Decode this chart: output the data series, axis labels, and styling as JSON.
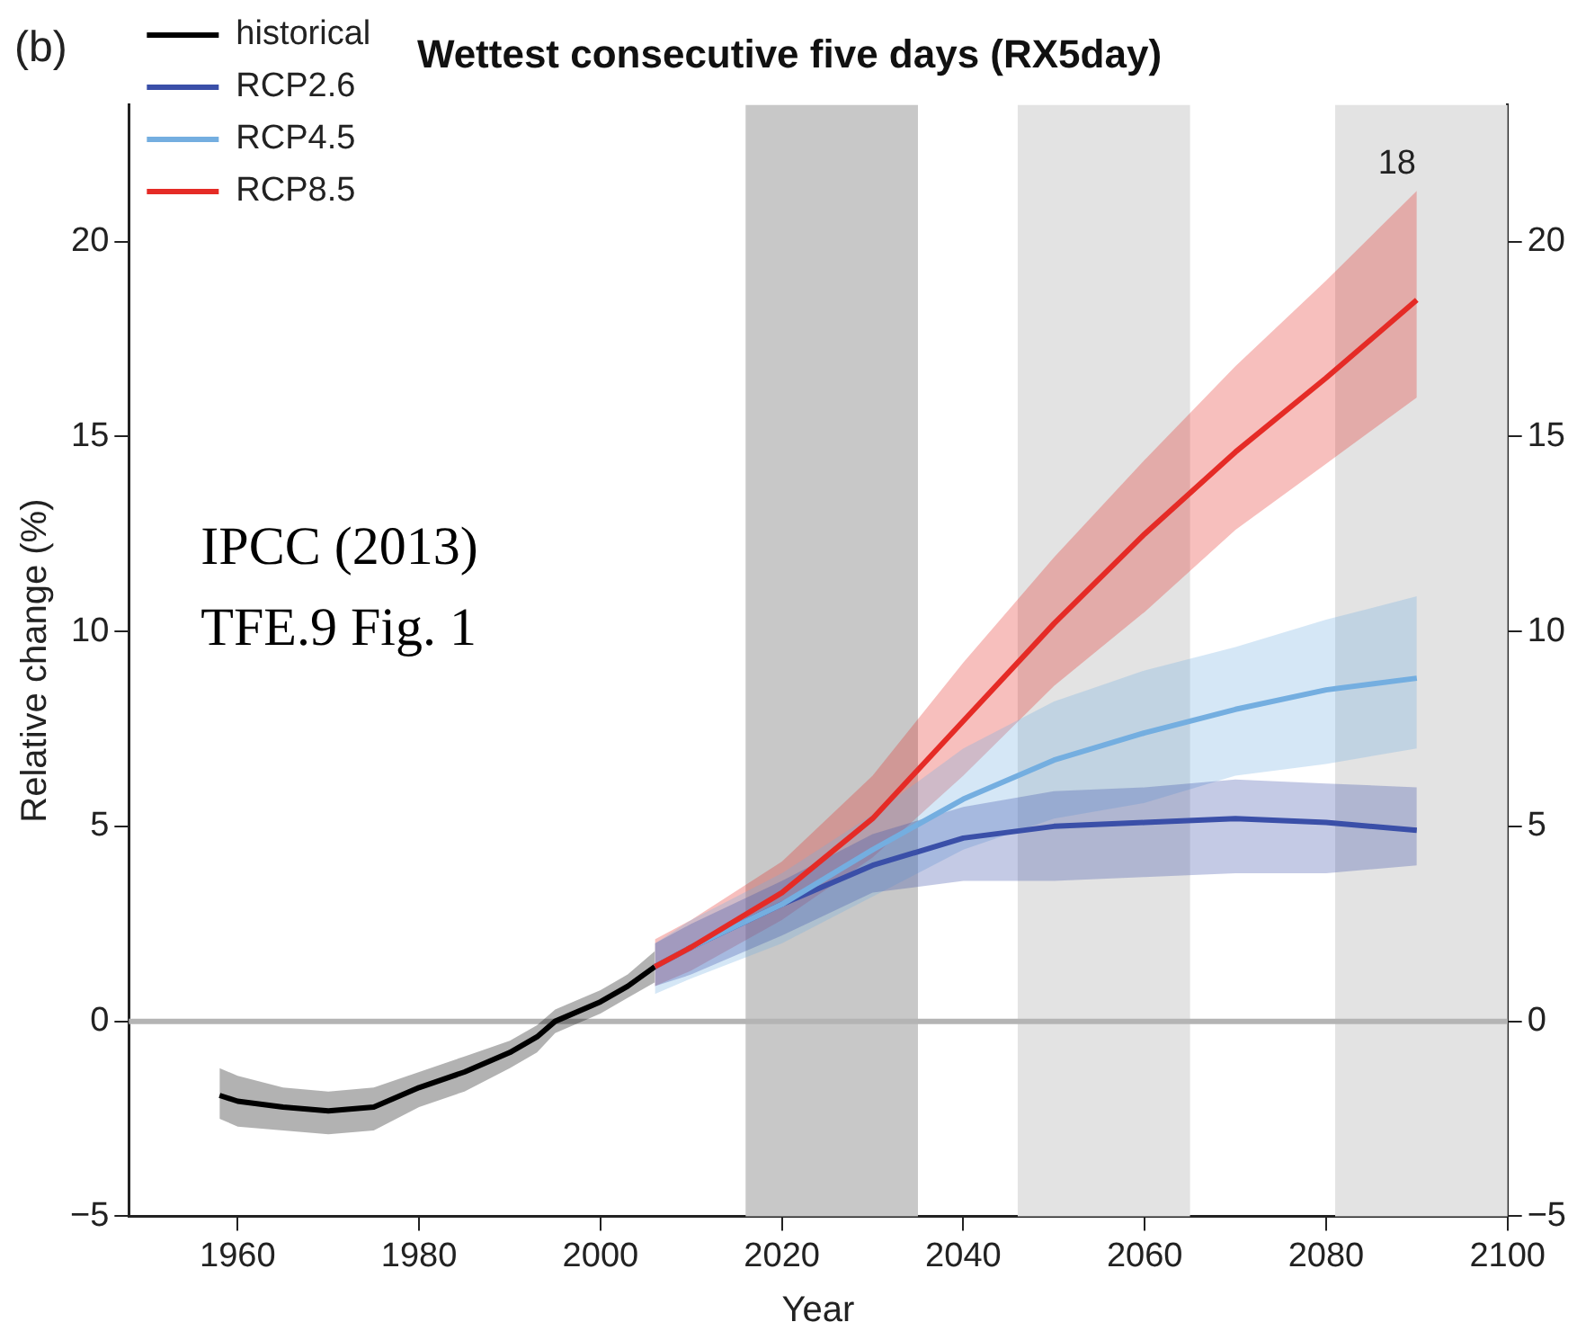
{
  "chart_data": {
    "type": "line",
    "title": "Wettest consecutive five days (RX5day)",
    "xlabel": "Year",
    "ylabel": "Relative change (%)",
    "xlim": [
      1948,
      2100
    ],
    "xticks": [
      1960,
      1980,
      2000,
      2020,
      2040,
      2060,
      2080,
      2100
    ],
    "ylim": [
      -5,
      23.5
    ],
    "yticks": [
      -5,
      0,
      5,
      10,
      15,
      20
    ],
    "y2lim": [
      -5,
      23.5
    ],
    "y2ticks": [
      -5,
      0,
      5,
      10,
      15,
      20
    ],
    "grid": false,
    "legend": "top left",
    "marker": "none",
    "line_style": "solid",
    "bands": [
      {
        "axis": "x",
        "from": 2016,
        "to": 2035,
        "color": "#c8c8c8"
      },
      {
        "axis": "x",
        "from": 2046,
        "to": 2065,
        "color": "#e3e3e3"
      },
      {
        "axis": "x",
        "from": 2081,
        "to": 2100,
        "color": "#e3e3e3"
      }
    ],
    "ref_lines": [
      {
        "axis": "y",
        "value": 0,
        "color": "#b4b4b4"
      }
    ],
    "annotations": [
      "(b)",
      "18",
      "IPCC (2013)",
      "TFE.9 Fig. 1"
    ],
    "series": [
      {
        "name": "historical",
        "color": "#000000",
        "x": [
          1958,
          1960,
          1965,
          1970,
          1975,
          1980,
          1985,
          1990,
          1993,
          1995,
          2000,
          2003,
          2006
        ],
        "values": [
          -1.9,
          -2.05,
          -2.2,
          -2.3,
          -2.2,
          -1.7,
          -1.3,
          -0.8,
          -0.4,
          0,
          0.5,
          0.9,
          1.4
        ],
        "lower": [
          -2.5,
          -2.7,
          -2.8,
          -2.9,
          -2.8,
          -2.2,
          -1.8,
          -1.2,
          -0.8,
          -0.3,
          0.2,
          0.6,
          1.0
        ],
        "upper": [
          -1.2,
          -1.4,
          -1.7,
          -1.8,
          -1.7,
          -1.3,
          -0.9,
          -0.5,
          -0.1,
          0.3,
          0.8,
          1.2,
          1.8
        ]
      },
      {
        "name": "RCP2.6",
        "color": "#3a4fa8",
        "x": [
          2006,
          2010,
          2020,
          2030,
          2040,
          2050,
          2060,
          2070,
          2080,
          2090
        ],
        "values": [
          1.4,
          1.9,
          3.0,
          4.0,
          4.7,
          5.0,
          5.1,
          5.2,
          5.1,
          4.9
        ],
        "lower": [
          0.9,
          1.2,
          2.2,
          3.3,
          3.6,
          3.6,
          3.7,
          3.8,
          3.8,
          4.0
        ],
        "upper": [
          2.0,
          2.5,
          3.6,
          4.8,
          5.5,
          5.9,
          6.0,
          6.2,
          6.1,
          6.0
        ]
      },
      {
        "name": "RCP4.5",
        "color": "#74aee0",
        "x": [
          2006,
          2010,
          2020,
          2030,
          2040,
          2050,
          2060,
          2070,
          2080,
          2090
        ],
        "values": [
          1.4,
          1.9,
          3.0,
          4.4,
          5.7,
          6.7,
          7.4,
          8.0,
          8.5,
          8.8
        ],
        "lower": [
          0.7,
          1.1,
          2.0,
          3.2,
          4.4,
          5.2,
          5.6,
          6.3,
          6.6,
          7.0
        ],
        "upper": [
          2.0,
          2.6,
          3.8,
          5.3,
          7.0,
          8.2,
          9.0,
          9.6,
          10.3,
          10.9
        ]
      },
      {
        "name": "RCP8.5",
        "color": "#e52b26",
        "x": [
          2006,
          2010,
          2020,
          2030,
          2040,
          2050,
          2060,
          2070,
          2080,
          2090
        ],
        "values": [
          1.4,
          1.9,
          3.3,
          5.2,
          7.7,
          10.2,
          12.5,
          14.6,
          16.5,
          18.5
        ],
        "lower": [
          0.9,
          1.3,
          2.6,
          4.2,
          6.3,
          8.6,
          10.5,
          12.6,
          14.3,
          16.0
        ],
        "upper": [
          2.1,
          2.6,
          4.1,
          6.3,
          9.2,
          11.9,
          14.4,
          16.8,
          19.0,
          21.3
        ]
      }
    ]
  }
}
